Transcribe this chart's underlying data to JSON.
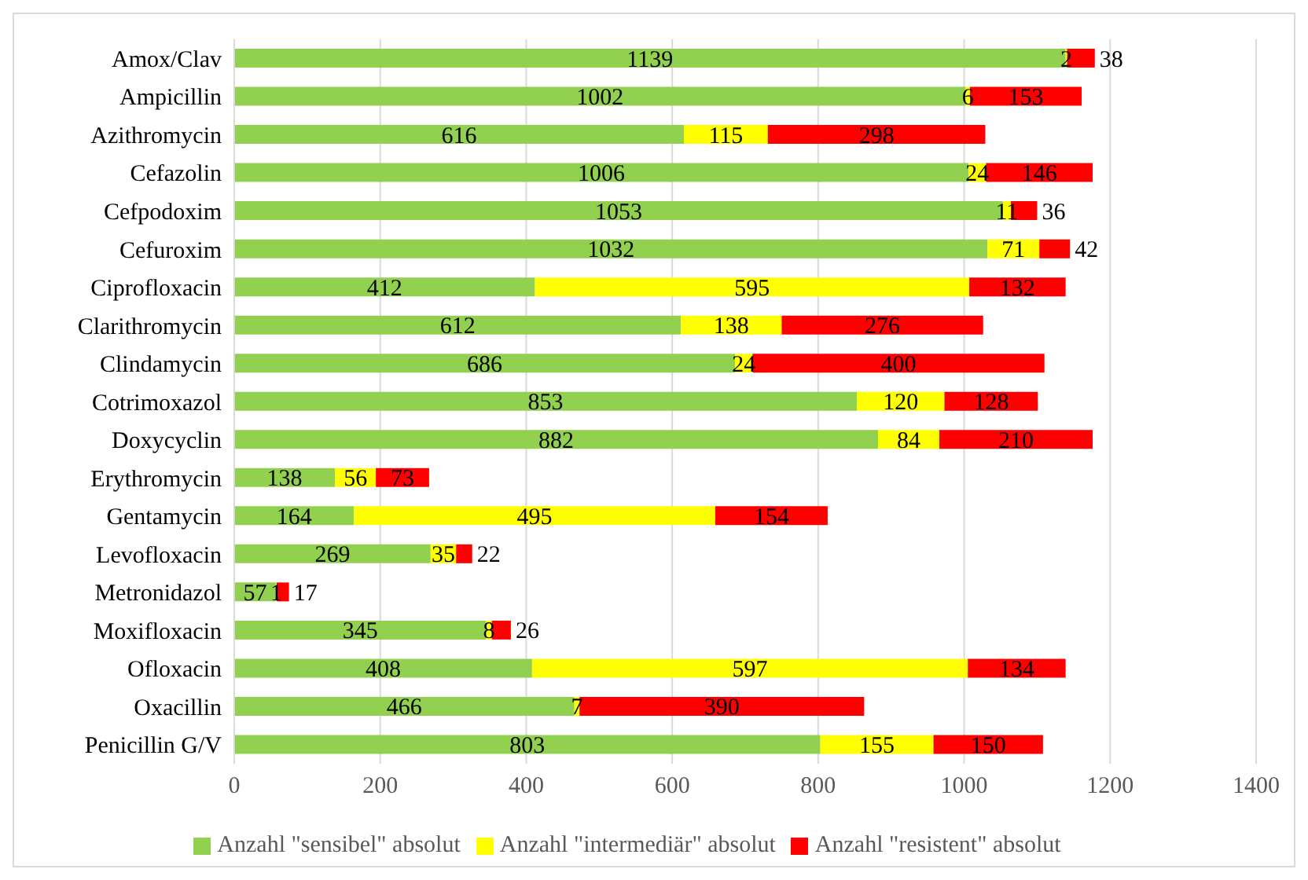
{
  "chart_data": {
    "type": "bar",
    "orientation": "horizontal",
    "stacked": true,
    "data_labels": true,
    "grid": "x",
    "legend": "bottom",
    "categories": [
      "Amox/Clav",
      "Ampicillin",
      "Azithromycin",
      "Cefazolin",
      "Cefpodoxim",
      "Cefuroxim",
      "Ciprofloxacin",
      "Clarithromycin",
      "Clindamycin",
      "Cotrimoxazol",
      "Doxycyclin",
      "Erythromycin",
      "Gentamycin",
      "Levofloxacin",
      "Metronidazol",
      "Moxifloxacin",
      "Ofloxacin",
      "Oxacillin",
      "Penicillin G/V"
    ],
    "xlim": [
      0,
      1400
    ],
    "xticks": [
      0,
      200,
      400,
      600,
      800,
      1000,
      1200,
      1400
    ],
    "series": [
      {
        "name": "Anzahl \"sensibel\" absolut",
        "color": "#92d050",
        "values": [
          1139,
          1002,
          616,
          1006,
          1053,
          1032,
          412,
          612,
          686,
          853,
          882,
          138,
          164,
          269,
          57,
          345,
          408,
          466,
          803
        ]
      },
      {
        "name": "Anzahl \"intermediär\" absolut",
        "color": "#ffff00",
        "values": [
          2,
          6,
          115,
          24,
          11,
          71,
          595,
          138,
          24,
          120,
          84,
          56,
          495,
          35,
          1,
          8,
          597,
          7,
          155
        ]
      },
      {
        "name": "Anzahl \"resistent\" absolut",
        "color": "#ff0000",
        "values": [
          38,
          153,
          298,
          146,
          36,
          42,
          132,
          276,
          400,
          128,
          210,
          73,
          154,
          22,
          17,
          26,
          134,
          390,
          150
        ]
      }
    ]
  }
}
